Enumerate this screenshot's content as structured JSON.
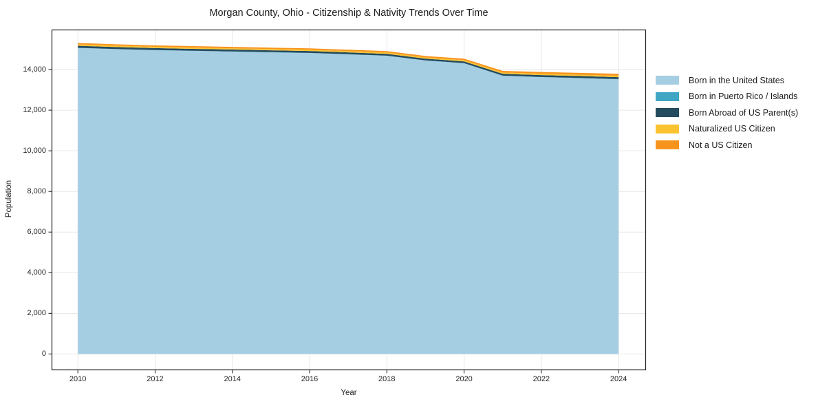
{
  "chart_data": {
    "type": "area",
    "stacked": true,
    "title": "Morgan County, Ohio - Citizenship & Nativity Trends Over Time",
    "xlabel": "Year",
    "ylabel": "Population",
    "x": [
      2010,
      2011,
      2012,
      2013,
      2014,
      2015,
      2016,
      2017,
      2018,
      2019,
      2020,
      2021,
      2022,
      2023,
      2024
    ],
    "series": [
      {
        "name": "Born in the United States",
        "color": "#a6cee3",
        "values": [
          15060,
          15000,
          14950,
          14915,
          14880,
          14845,
          14810,
          14745,
          14675,
          14440,
          14305,
          13690,
          13625,
          13575,
          13520
        ]
      },
      {
        "name": "Born in Puerto Rico / Islands",
        "color": "#41a6c4",
        "values": [
          10,
          10,
          10,
          10,
          10,
          10,
          10,
          10,
          10,
          10,
          10,
          10,
          10,
          10,
          10
        ]
      },
      {
        "name": "Born Abroad of US Parent(s)",
        "color": "#254b5f",
        "values": [
          100,
          98,
          95,
          93,
          92,
          90,
          90,
          88,
          88,
          85,
          85,
          90,
          92,
          94,
          95
        ]
      },
      {
        "name": "Naturalized US Citizen",
        "color": "#fcc330",
        "values": [
          65,
          65,
          64,
          64,
          63,
          63,
          64,
          64,
          65,
          60,
          62,
          64,
          65,
          65,
          66
        ]
      },
      {
        "name": "Not a US Citizen",
        "color": "#f7941e",
        "values": [
          72,
          71,
          70,
          70,
          70,
          70,
          70,
          70,
          71,
          72,
          73,
          80,
          88,
          94,
          100
        ]
      }
    ],
    "xlim": [
      2009.32,
      2024.71
    ],
    "ylim": [
      -800,
      15966
    ],
    "xticks": [
      2010,
      2012,
      2014,
      2016,
      2018,
      2020,
      2022,
      2024
    ],
    "xtick_labels": [
      "2010",
      "2012",
      "2014",
      "2016",
      "2018",
      "2020",
      "2022",
      "2024"
    ],
    "yticks": [
      0,
      2000,
      4000,
      6000,
      8000,
      10000,
      12000,
      14000
    ],
    "ytick_labels": [
      "0",
      "2,000",
      "4,000",
      "6,000",
      "8,000",
      "10,000",
      "12,000",
      "14,000"
    ],
    "grid": true,
    "legend_position": "right-outside"
  },
  "style": {
    "grid_color": "#e7e7e7",
    "axis_color": "#1a1a1a",
    "tick_color": "#262626",
    "background": "#ffffff"
  }
}
